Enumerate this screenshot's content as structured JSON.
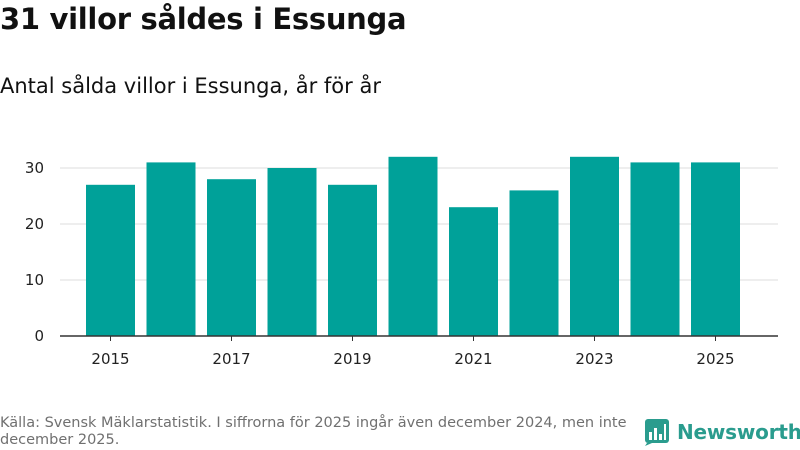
{
  "title": "31 villor såldes i Essunga",
  "subtitle": "Antal sålda villor i Essunga, år för år",
  "footnote": "Källa: Svensk Mäklarstatistik. I siffrorna för 2025 ingår även december 2024, men inte december 2025.",
  "brand": {
    "name": "Newsworthy",
    "icon": "newsworthy-logo-icon",
    "color": "#2a9c8e"
  },
  "colors": {
    "bar": "#00a199",
    "grid": "#dddddd",
    "axis": "#333333"
  },
  "chart_data": {
    "type": "bar",
    "title": "Antal sålda villor i Essunga, år för år",
    "xlabel": "",
    "ylabel": "",
    "categories": [
      "2015",
      "2016",
      "2017",
      "2018",
      "2019",
      "2020",
      "2021",
      "2022",
      "2023",
      "2024",
      "2025"
    ],
    "values": [
      27,
      31,
      28,
      30,
      27,
      32,
      23,
      26,
      32,
      31,
      31
    ],
    "ylim": [
      0,
      35
    ],
    "yticks": [
      0,
      10,
      20,
      30
    ],
    "xtick_labels": [
      "2015",
      "2017",
      "2019",
      "2021",
      "2023",
      "2025"
    ],
    "grid": true,
    "legend": "none"
  }
}
